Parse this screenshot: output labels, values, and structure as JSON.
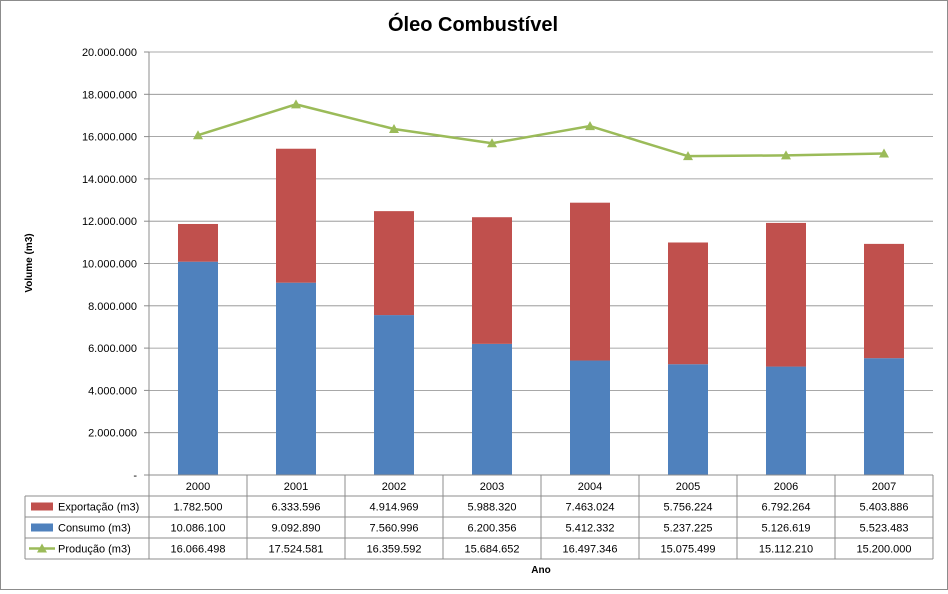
{
  "chart_data": {
    "type": "bar",
    "stacked": true,
    "title": "Óleo Combustível",
    "xlabel": "Ano",
    "ylabel": "Volume (m3)",
    "ylim": [
      0,
      20000000
    ],
    "yticks": [
      0,
      2000000,
      4000000,
      6000000,
      8000000,
      10000000,
      12000000,
      14000000,
      16000000,
      18000000,
      20000000
    ],
    "ytick_labels": [
      "-",
      "2.000.000",
      "4.000.000",
      "6.000.000",
      "8.000.000",
      "10.000.000",
      "12.000.000",
      "14.000.000",
      "16.000.000",
      "18.000.000",
      "20.000.000"
    ],
    "categories": [
      "2000",
      "2001",
      "2002",
      "2003",
      "2004",
      "2005",
      "2006",
      "2007"
    ],
    "legend_position": "data-table",
    "series": [
      {
        "name": "Exportação (m3)",
        "kind": "bar",
        "color": "#c0504d",
        "values": [
          1782500,
          6333596,
          4914969,
          5988320,
          7463024,
          5756224,
          6792264,
          5403886
        ],
        "labels": [
          "1.782.500",
          "6.333.596",
          "4.914.969",
          "5.988.320",
          "7.463.024",
          "5.756.224",
          "6.792.264",
          "5.403.886"
        ]
      },
      {
        "name": "Consumo (m3)",
        "kind": "bar",
        "color": "#4f81bd",
        "values": [
          10086100,
          9092890,
          7560996,
          6200356,
          5412332,
          5237225,
          5126619,
          5523483
        ],
        "labels": [
          "10.086.100",
          "9.092.890",
          "7.560.996",
          "6.200.356",
          "5.412.332",
          "5.237.225",
          "5.126.619",
          "5.523.483"
        ]
      },
      {
        "name": "Produção (m3)",
        "kind": "line",
        "color": "#9bbb59",
        "values": [
          16066498,
          17524581,
          16359592,
          15684652,
          16497346,
          15075499,
          15112210,
          15200000
        ],
        "labels": [
          "16.066.498",
          "17.524.581",
          "16.359.592",
          "15.684.652",
          "16.497.346",
          "15.075.499",
          "15.112.210",
          "15.200.000"
        ]
      }
    ]
  }
}
